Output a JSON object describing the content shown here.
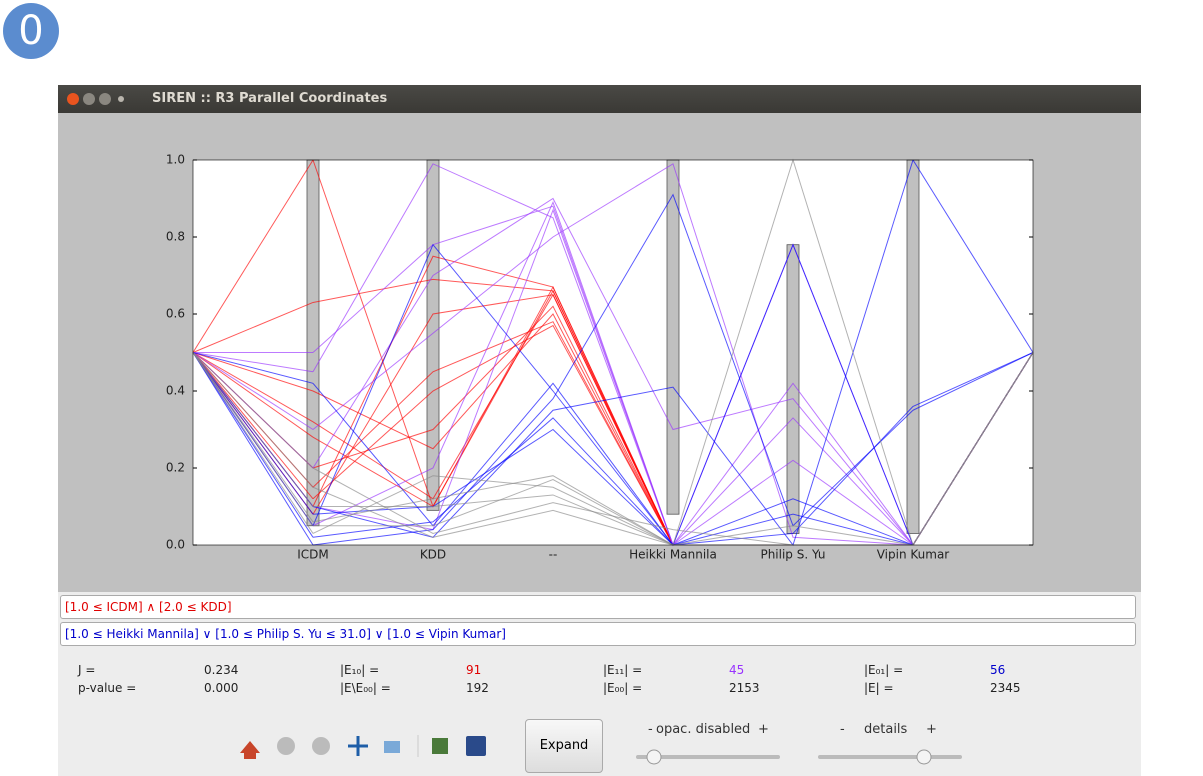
{
  "badge": "0",
  "window": {
    "title": "SIREN :: R3 Parallel Coordinates"
  },
  "chart_data": {
    "type": "parallel",
    "categories": [
      "ICDM",
      "KDD",
      "--",
      "Heikki Mannila",
      "Philip S. Yu",
      "Vipin Kumar"
    ],
    "ylim": [
      0,
      1
    ],
    "yticks": [
      {
        "value": 0,
        "label": "0.0"
      },
      0.2,
      0.4,
      0.6,
      0.8,
      {
        "value": 1,
        "label": "1.0"
      }
    ],
    "ranges": [
      [
        0.05,
        1.0
      ],
      [
        0.09,
        1.0
      ],
      null,
      [
        0.08,
        1.0
      ],
      [
        0.03,
        0.78
      ],
      [
        0.03,
        1.0
      ]
    ],
    "range_color": "#c0c0c0",
    "series": [
      {
        "color": "#ff0000",
        "lines": [
          [
            0.63,
            0.69,
            0.66,
            0,
            0,
            0
          ],
          [
            0.1,
            0.75,
            0.67,
            0,
            0,
            0
          ],
          [
            0.32,
            0.12,
            0.65,
            0,
            0,
            0
          ],
          [
            0.15,
            0.45,
            0.58,
            0,
            0,
            0
          ],
          [
            0.2,
            0.3,
            0.62,
            0,
            0,
            0
          ],
          [
            1.0,
            0.1,
            0.67,
            0,
            0,
            0
          ],
          [
            0.4,
            0.25,
            0.6,
            0,
            0,
            0
          ],
          [
            0.08,
            0.6,
            0.65,
            0,
            0,
            0
          ],
          [
            0.28,
            0.1,
            0.66,
            0,
            0,
            0
          ],
          [
            0.12,
            0.4,
            0.57,
            0,
            0,
            0
          ]
        ]
      },
      {
        "color": "#9933ff",
        "lines": [
          [
            0.45,
            0.99,
            0.85,
            0,
            0.42,
            0
          ],
          [
            0.5,
            0.78,
            0.88,
            0,
            0.33,
            0
          ],
          [
            0.2,
            0.7,
            0.9,
            0.3,
            0.38,
            0
          ],
          [
            0.1,
            0.04,
            0.87,
            0,
            0.78,
            0
          ],
          [
            0.3,
            0.55,
            0.8,
            0.99,
            0.02,
            0
          ],
          [
            0.05,
            0.2,
            0.89,
            0,
            0.22,
            0
          ]
        ]
      },
      {
        "color": "#0000ff",
        "lines": [
          [
            0,
            0.04,
            0.38,
            0.91,
            0.05,
            0.35
          ],
          [
            0.05,
            0.78,
            0.4,
            0,
            0.12,
            0
          ],
          [
            0.1,
            0.02,
            0.35,
            0.41,
            0,
            1.0
          ],
          [
            0.42,
            0.05,
            0.42,
            0,
            0.08,
            0
          ],
          [
            0.02,
            0.06,
            0.33,
            0,
            0.78,
            0
          ],
          [
            0.08,
            0.1,
            0.3,
            0,
            0.03,
            0.36
          ]
        ]
      },
      {
        "color": "#888888",
        "lines": [
          [
            0.05,
            0.05,
            0.17,
            0,
            1.0,
            0
          ],
          [
            0.03,
            0.18,
            0.15,
            0,
            0,
            0
          ],
          [
            0.1,
            0.1,
            0.13,
            0,
            0,
            0
          ],
          [
            0.2,
            0.03,
            0.11,
            0.04,
            0,
            0
          ],
          [
            0.06,
            0.12,
            0.18,
            0,
            0.05,
            0
          ],
          [
            0.15,
            0.02,
            0.09,
            0,
            0,
            0
          ]
        ]
      }
    ]
  },
  "queries": {
    "left": "[1.0 ≤ ICDM] ∧  [2.0 ≤ KDD]",
    "right": "[1.0 ≤ Heikki Mannila] ∨  [1.0 ≤ Philip S. Yu ≤ 31.0] ∨  [1.0 ≤ Vipin Kumar]"
  },
  "stats": [
    [
      "J =",
      "0.234"
    ],
    [
      "p-value =",
      "0.000"
    ],
    [
      "|E₁₀| =",
      "91"
    ],
    [
      "|E\\E₀₀| =",
      "192"
    ],
    [
      "|E₁₁| =",
      "45"
    ],
    [
      "|E₀₀| =",
      "2153"
    ],
    [
      "|E₀₁| =",
      "56"
    ],
    [
      "|E| =",
      "2345"
    ]
  ],
  "controls": {
    "expand": "Expand",
    "minus": "-",
    "plus": "+",
    "opacity": "opac. disabled",
    "details": "details"
  }
}
